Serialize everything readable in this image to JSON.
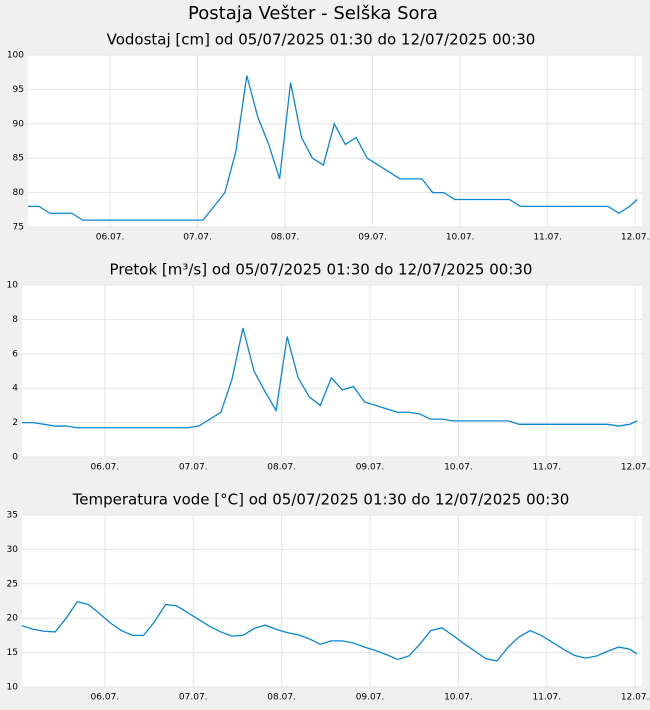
{
  "title": "Postaja Vešter - Selška Sora",
  "chart_data": [
    {
      "type": "line",
      "title": "Vodostaj [cm] od 05/07/2025 01:30 do 12/07/2025 00:30",
      "color": "#0a88d4",
      "grid": true,
      "x": [
        5.0625,
        5.1875,
        5.3125,
        5.4375,
        5.5625,
        5.6875,
        5.8125,
        5.9375,
        6.0625,
        6.1875,
        6.3125,
        6.4375,
        6.5625,
        6.6875,
        6.8125,
        6.9375,
        7.0625,
        7.1875,
        7.3125,
        7.4375,
        7.5625,
        7.6875,
        7.8125,
        7.9375,
        8.0625,
        8.1875,
        8.3125,
        8.4375,
        8.5625,
        8.6875,
        8.8125,
        8.9375,
        9.0625,
        9.1875,
        9.3125,
        9.4375,
        9.5625,
        9.6875,
        9.8125,
        9.9375,
        10.0625,
        10.1875,
        10.3125,
        10.4375,
        10.5625,
        10.6875,
        10.8125,
        10.9375,
        11.0625,
        11.1875,
        11.3125,
        11.4375,
        11.5625,
        11.6875,
        11.8125,
        11.9375,
        12.0208
      ],
      "values": [
        78,
        78,
        77,
        77,
        77,
        76,
        76,
        76,
        76,
        76,
        76,
        76,
        76,
        76,
        76,
        76,
        76,
        78,
        80,
        86,
        97,
        91,
        87,
        82,
        96,
        88,
        85,
        84,
        90,
        87,
        88,
        85,
        84,
        83,
        82,
        82,
        82,
        80,
        80,
        79,
        79,
        79,
        79,
        79,
        79,
        78,
        78,
        78,
        78,
        78,
        78,
        78,
        78,
        78,
        77,
        78,
        79
      ],
      "xlim": [
        5.0625,
        12.0208
      ],
      "xticks": [
        {
          "value": 6,
          "label": "06.07."
        },
        {
          "value": 7,
          "label": "07.07."
        },
        {
          "value": 8,
          "label": "08.07."
        },
        {
          "value": 9,
          "label": "09.07."
        },
        {
          "value": 10,
          "label": "10.07."
        },
        {
          "value": 11,
          "label": "11.07."
        },
        {
          "value": 12,
          "label": "12.07."
        }
      ],
      "ylim": [
        75,
        100
      ],
      "yticks": [
        75,
        80,
        85,
        90,
        95,
        100
      ]
    },
    {
      "type": "line",
      "title": "Pretok [m³/s] od 05/07/2025 01:30 do 12/07/2025 00:30",
      "color": "#0a88d4",
      "grid": true,
      "x": [
        5.0625,
        5.1875,
        5.3125,
        5.4375,
        5.5625,
        5.6875,
        5.8125,
        5.9375,
        6.0625,
        6.1875,
        6.3125,
        6.4375,
        6.5625,
        6.6875,
        6.8125,
        6.9375,
        7.0625,
        7.1875,
        7.3125,
        7.4375,
        7.5625,
        7.6875,
        7.8125,
        7.9375,
        8.0625,
        8.1875,
        8.3125,
        8.4375,
        8.5625,
        8.6875,
        8.8125,
        8.9375,
        9.0625,
        9.1875,
        9.3125,
        9.4375,
        9.5625,
        9.6875,
        9.8125,
        9.9375,
        10.0625,
        10.1875,
        10.3125,
        10.4375,
        10.5625,
        10.6875,
        10.8125,
        10.9375,
        11.0625,
        11.1875,
        11.3125,
        11.4375,
        11.5625,
        11.6875,
        11.8125,
        11.9375,
        12.0208
      ],
      "values": [
        2.0,
        2.0,
        1.9,
        1.8,
        1.8,
        1.7,
        1.7,
        1.7,
        1.7,
        1.7,
        1.7,
        1.7,
        1.7,
        1.7,
        1.7,
        1.7,
        1.8,
        2.2,
        2.6,
        4.5,
        7.5,
        5.0,
        3.8,
        2.7,
        7.0,
        4.6,
        3.5,
        3.0,
        4.6,
        3.9,
        4.1,
        3.2,
        3.0,
        2.8,
        2.6,
        2.6,
        2.5,
        2.2,
        2.2,
        2.1,
        2.1,
        2.1,
        2.1,
        2.1,
        2.1,
        1.9,
        1.9,
        1.9,
        1.9,
        1.9,
        1.9,
        1.9,
        1.9,
        1.9,
        1.8,
        1.9,
        2.1
      ],
      "xlim": [
        5.0625,
        12.0208
      ],
      "xticks": [
        {
          "value": 6,
          "label": "06.07."
        },
        {
          "value": 7,
          "label": "07.07."
        },
        {
          "value": 8,
          "label": "08.07."
        },
        {
          "value": 9,
          "label": "09.07."
        },
        {
          "value": 10,
          "label": "10.07."
        },
        {
          "value": 11,
          "label": "11.07."
        },
        {
          "value": 12,
          "label": "12.07."
        }
      ],
      "ylim": [
        0,
        10
      ],
      "yticks": [
        0,
        2,
        4,
        6,
        8,
        10
      ]
    },
    {
      "type": "line",
      "title": "Temperatura vode [°C] od 05/07/2025 01:30 do 12/07/2025 00:30",
      "color": "#0a88d4",
      "grid": true,
      "x": [
        5.0625,
        5.1875,
        5.3125,
        5.4375,
        5.5625,
        5.6875,
        5.8125,
        5.9375,
        6.0625,
        6.1875,
        6.3125,
        6.4375,
        6.5625,
        6.6875,
        6.8125,
        6.9375,
        7.0625,
        7.1875,
        7.3125,
        7.4375,
        7.5625,
        7.6875,
        7.8125,
        7.9375,
        8.0625,
        8.1875,
        8.3125,
        8.4375,
        8.5625,
        8.6875,
        8.8125,
        8.9375,
        9.0625,
        9.1875,
        9.3125,
        9.4375,
        9.5625,
        9.6875,
        9.8125,
        9.9375,
        10.0625,
        10.1875,
        10.3125,
        10.4375,
        10.5625,
        10.6875,
        10.8125,
        10.9375,
        11.0625,
        11.1875,
        11.3125,
        11.4375,
        11.5625,
        11.6875,
        11.8125,
        11.9375,
        12.0208
      ],
      "values": [
        18.9,
        18.4,
        18.1,
        18.0,
        20.0,
        22.4,
        22.0,
        20.7,
        19.3,
        18.2,
        17.5,
        17.5,
        19.5,
        22.0,
        21.8,
        20.8,
        19.8,
        18.8,
        18.0,
        17.4,
        17.5,
        18.5,
        19.0,
        18.4,
        17.9,
        17.6,
        17.0,
        16.2,
        16.7,
        16.7,
        16.4,
        15.8,
        15.3,
        14.7,
        14.0,
        14.5,
        16.2,
        18.2,
        18.6,
        17.5,
        16.3,
        15.2,
        14.1,
        13.8,
        15.8,
        17.3,
        18.2,
        17.5,
        16.5,
        15.5,
        14.6,
        14.2,
        14.5,
        15.2,
        15.8,
        15.5,
        14.8
      ],
      "xlim": [
        5.0625,
        12.0208
      ],
      "xticks": [
        {
          "value": 6,
          "label": "06.07."
        },
        {
          "value": 7,
          "label": "07.07."
        },
        {
          "value": 8,
          "label": "08.07."
        },
        {
          "value": 9,
          "label": "09.07."
        },
        {
          "value": 10,
          "label": "10.07."
        },
        {
          "value": 11,
          "label": "11.07."
        },
        {
          "value": 12,
          "label": "12.07."
        }
      ],
      "ylim": [
        10,
        35
      ],
      "yticks": [
        10,
        15,
        20,
        25,
        30,
        35
      ]
    }
  ]
}
